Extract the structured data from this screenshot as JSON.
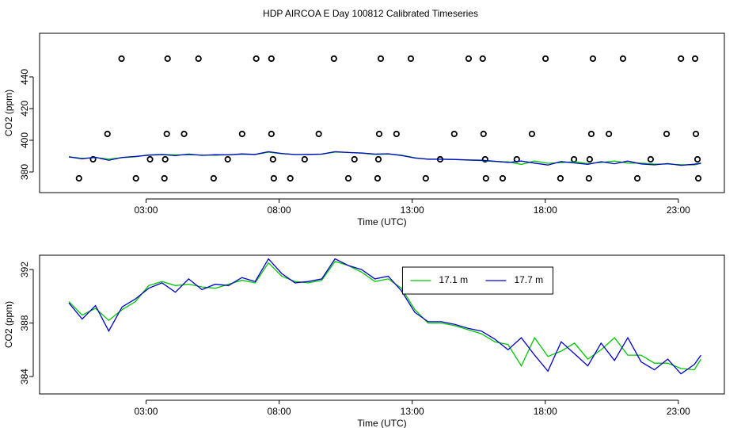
{
  "chart_data": [
    {
      "type": "scatter",
      "title": "HDP AIRCOA E  Day 100812  Calibrated Timeseries",
      "xlabel": "Time (UTC)",
      "ylabel": "CO2 (ppm)",
      "color": "#000000",
      "x": [
        2.08,
        3.81,
        4.97,
        7.14,
        7.71,
        10.06,
        11.82,
        12.95,
        15.12,
        15.65,
        18.01,
        19.79,
        20.92,
        23.1,
        23.63,
        1.55,
        3.78,
        4.43,
        6.61,
        7.71,
        9.49,
        11.76,
        12.41,
        14.58,
        15.68,
        17.5,
        19.73,
        20.39,
        22.56,
        23.66,
        1.01,
        3.15,
        3.72,
        6.07,
        7.77,
        8.96,
        10.83,
        11.73,
        14.05,
        15.74,
        16.93,
        19.08,
        19.67,
        21.96,
        23.72,
        0.48,
        2.62,
        3.69,
        5.54,
        7.8,
        8.42,
        10.6,
        11.7,
        13.51,
        15.77,
        16.4,
        18.57,
        19.64,
        21.46,
        23.75
      ],
      "y": [
        451.5,
        451.5,
        451.5,
        451.5,
        451.5,
        451.5,
        451.5,
        451.5,
        451.5,
        451.5,
        451.5,
        451.5,
        451.5,
        451.5,
        451.5,
        404,
        404,
        404,
        404,
        404,
        404,
        404,
        404,
        404,
        404,
        404,
        404,
        404,
        404,
        404,
        388,
        388,
        388,
        388,
        388,
        388,
        388,
        388,
        388,
        388,
        388,
        388,
        388,
        388,
        388,
        376,
        376,
        376,
        376,
        376,
        376,
        376,
        376,
        376,
        376,
        376,
        376,
        376,
        376,
        376
      ],
      "xlim": [
        -1,
        24.73
      ],
      "xticks": [
        {
          "value": 3,
          "label": "03:00"
        },
        {
          "value": 8,
          "label": "08:00"
        },
        {
          "value": 13,
          "label": "13:00"
        },
        {
          "value": 18,
          "label": "18:00"
        },
        {
          "value": 23,
          "label": "23:00"
        }
      ],
      "ylim": [
        367,
        467.5
      ],
      "yticks": [
        380,
        400,
        420,
        440
      ]
    },
    {
      "type": "line",
      "xlabel": "Time (UTC)",
      "ylabel": "CO2 (ppm)",
      "legend": "top-center",
      "x": [
        0.1,
        0.6,
        1.1,
        1.6,
        2.1,
        2.6,
        3.1,
        3.6,
        4.1,
        4.6,
        5.1,
        5.6,
        6.1,
        6.6,
        7.1,
        7.6,
        8.1,
        8.6,
        9.1,
        9.6,
        10.1,
        10.6,
        11.1,
        11.6,
        12.1,
        12.6,
        13.1,
        13.6,
        14.1,
        14.6,
        15.1,
        15.6,
        16.1,
        16.6,
        17.1,
        17.6,
        18.1,
        18.6,
        19.1,
        19.6,
        20.1,
        20.6,
        21.1,
        21.6,
        22.1,
        22.6,
        23.1,
        23.6,
        23.85
      ],
      "series": [
        {
          "name": "17.1 m",
          "color": "#00c800",
          "values": [
            389.6,
            388.6,
            389.1,
            388.2,
            389.0,
            389.6,
            390.8,
            391.1,
            390.8,
            390.9,
            390.7,
            390.6,
            390.9,
            391.2,
            391.0,
            392.5,
            391.5,
            391.1,
            391.0,
            391.2,
            392.6,
            392.3,
            391.8,
            391.1,
            391.3,
            390.6,
            389.0,
            388.0,
            388.0,
            387.8,
            387.5,
            387.2,
            386.6,
            386.4,
            384.8,
            386.9,
            385.5,
            385.9,
            386.5,
            385.3,
            386.0,
            386.9,
            385.6,
            385.6,
            385.0,
            385.0,
            384.6,
            384.5,
            385.3
          ]
        },
        {
          "name": "17.7 m",
          "color": "#0000cc",
          "values": [
            389.5,
            388.3,
            389.3,
            387.4,
            389.2,
            389.8,
            390.6,
            391.0,
            390.3,
            391.3,
            390.5,
            390.9,
            390.8,
            391.4,
            391.1,
            392.8,
            391.7,
            391.0,
            391.1,
            391.3,
            392.8,
            392.3,
            392.0,
            391.3,
            391.5,
            390.4,
            388.8,
            388.1,
            388.1,
            387.9,
            387.6,
            387.4,
            386.8,
            386.0,
            386.9,
            385.6,
            384.4,
            386.6,
            385.7,
            384.8,
            386.5,
            385.2,
            386.9,
            385.1,
            384.5,
            385.3,
            384.2,
            384.9,
            385.6
          ]
        }
      ],
      "xlim": [
        -1,
        24.73
      ],
      "xticks": [
        {
          "value": 3,
          "label": "03:00"
        },
        {
          "value": 8,
          "label": "08:00"
        },
        {
          "value": 13,
          "label": "13:00"
        },
        {
          "value": 18,
          "label": "18:00"
        },
        {
          "value": 23,
          "label": "23:00"
        }
      ],
      "ylim": [
        382.7,
        393.07
      ],
      "yticks": [
        384,
        388,
        392
      ]
    }
  ]
}
